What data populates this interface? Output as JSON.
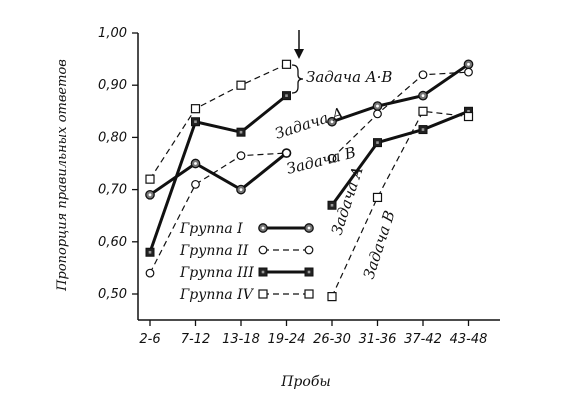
{
  "chart_data": {
    "type": "line",
    "categories": [
      "2-6",
      "7-12",
      "13-18",
      "19-24",
      "26-30",
      "31-36",
      "37-42",
      "43-48"
    ],
    "xlabel": "Пробы",
    "ylabel": "Пропорция правильных ответов",
    "ylim": [
      0.5,
      1.0
    ],
    "yticks": [
      "0,50",
      "0,60",
      "0,70",
      "0,80",
      "0,90",
      "1,00"
    ],
    "grid": false,
    "legend_position": "lower-left",
    "series": [
      {
        "name": "Группа I",
        "style": "solid-thick",
        "marker": "dotted-circle",
        "values": [
          0.69,
          0.75,
          0.7,
          0.77,
          0.83,
          0.86,
          0.88,
          0.94
        ]
      },
      {
        "name": "Группа II",
        "style": "dashed",
        "marker": "open-circle",
        "values": [
          0.54,
          0.71,
          0.765,
          0.77,
          0.76,
          0.845,
          0.92,
          0.925
        ]
      },
      {
        "name": "Группа III",
        "style": "solid-thick",
        "marker": "filled-square",
        "values": [
          0.58,
          0.83,
          0.81,
          0.88,
          0.67,
          0.79,
          0.815,
          0.85
        ]
      },
      {
        "name": "Группа IV",
        "style": "dashed",
        "marker": "open-square",
        "values": [
          0.72,
          0.855,
          0.9,
          0.94,
          0.495,
          0.685,
          0.85,
          0.84
        ]
      }
    ],
    "annotations": [
      {
        "text": "Задача A·B"
      },
      {
        "text": "Задача A"
      },
      {
        "text": "Задача B"
      },
      {
        "text": "Задача A"
      },
      {
        "text": "Задача B"
      }
    ]
  }
}
